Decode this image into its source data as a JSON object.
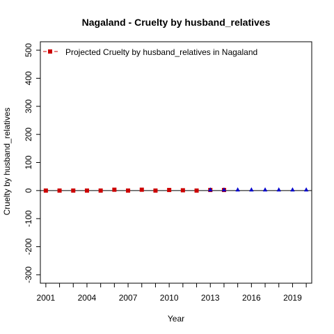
{
  "chart_data": {
    "type": "scatter",
    "title": "Nagaland  -  Cruelty by husband_relatives",
    "xlabel": "Year",
    "ylabel": "Cruelty by husband_relatives",
    "xlim": [
      2000.6,
      2020.4
    ],
    "ylim": [
      -330,
      530
    ],
    "x_ticks": [
      2001,
      2002,
      2003,
      2004,
      2005,
      2006,
      2007,
      2008,
      2009,
      2010,
      2011,
      2012,
      2013,
      2014,
      2015,
      2016,
      2017,
      2018,
      2019,
      2020
    ],
    "x_tick_labels": [
      "2001",
      "",
      "",
      "2004",
      "",
      "",
      "2007",
      "",
      "",
      "2010",
      "",
      "",
      "2013",
      "",
      "",
      "2016",
      "",
      "",
      "2019",
      ""
    ],
    "y_ticks": [
      -300,
      -200,
      -100,
      0,
      100,
      200,
      300,
      400,
      500
    ],
    "y_tick_labels": [
      "-300",
      "-200",
      "-100",
      "0",
      "100",
      "200",
      "300",
      "400",
      "500"
    ],
    "zero_line": true,
    "grid": false,
    "legend": {
      "placement": "top-left",
      "entries": [
        {
          "label": "Projected  Cruelty by husband_relatives  in  Nagaland",
          "color": "#cc0000",
          "marker": "square"
        }
      ]
    },
    "series": [
      {
        "name": "Projected  Cruelty by husband_relatives  in  Nagaland",
        "color": "#cc0000",
        "marker": "square",
        "x": [
          2001,
          2002,
          2003,
          2004,
          2005,
          2006,
          2007,
          2008,
          2009,
          2010,
          2011,
          2012,
          2013,
          2014
        ],
        "y": [
          0,
          0,
          0,
          0,
          0,
          3,
          0,
          3,
          0,
          2,
          1,
          0,
          2,
          2
        ]
      },
      {
        "color": "#0000cc",
        "marker": "triangle",
        "x": [
          2013,
          2014,
          2015,
          2016,
          2017,
          2018,
          2019,
          2020
        ],
        "y": [
          3,
          3,
          3,
          3,
          3,
          3,
          3,
          3
        ]
      }
    ]
  }
}
